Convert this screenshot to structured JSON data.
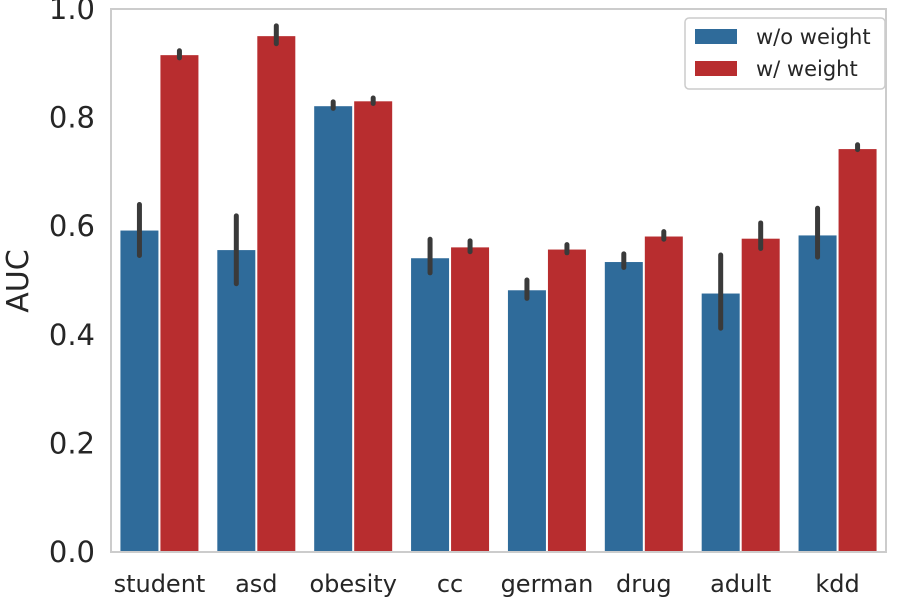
{
  "chart_data": {
    "type": "bar",
    "title": "",
    "xlabel": "",
    "ylabel": "AUC",
    "ylim": [
      0.0,
      1.0
    ],
    "yticks": [
      "0.0",
      "0.2",
      "0.4",
      "0.6",
      "0.8",
      "1.0"
    ],
    "grid": false,
    "legend_position": "top-right",
    "categories": [
      "student",
      "asd",
      "obesity",
      "cc",
      "german",
      "drug",
      "adult",
      "kdd"
    ],
    "series": [
      {
        "name": "w/o weight",
        "color": "#2f6b9a",
        "values": [
          0.592,
          0.556,
          0.821,
          0.541,
          0.482,
          0.534,
          0.476,
          0.583
        ],
        "err_low": [
          0.546,
          0.494,
          0.817,
          0.514,
          0.467,
          0.524,
          0.412,
          0.543
        ],
        "err_high": [
          0.64,
          0.619,
          0.829,
          0.576,
          0.501,
          0.549,
          0.547,
          0.633
        ]
      },
      {
        "name": "w/ weight",
        "color": "#b82d2f",
        "values": [
          0.915,
          0.95,
          0.83,
          0.561,
          0.557,
          0.581,
          0.577,
          0.742
        ],
        "err_low": [
          0.91,
          0.936,
          0.826,
          0.553,
          0.551,
          0.576,
          0.559,
          0.741
        ],
        "err_high": [
          0.923,
          0.969,
          0.836,
          0.573,
          0.566,
          0.59,
          0.606,
          0.75
        ]
      }
    ]
  }
}
